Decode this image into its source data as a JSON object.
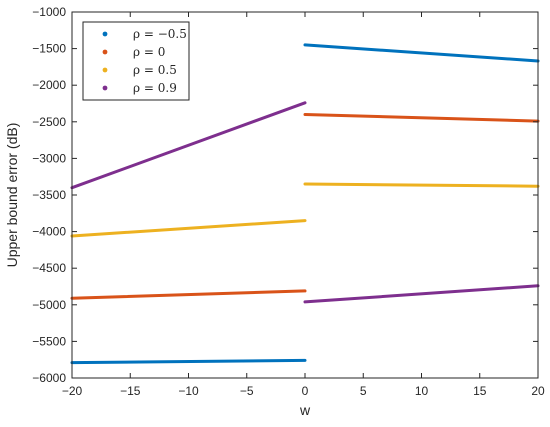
{
  "chart_data": {
    "type": "line",
    "xlabel": "w",
    "ylabel": "Upper bound error (dB)",
    "xlim": [
      -20,
      20
    ],
    "ylim": [
      -6000,
      -1000
    ],
    "xticks": [
      -20,
      -15,
      -10,
      -5,
      0,
      5,
      10,
      15,
      20
    ],
    "yticks": [
      -6000,
      -5500,
      -5000,
      -4500,
      -4000,
      -3500,
      -3000,
      -2500,
      -2000,
      -1500,
      -1000
    ],
    "grid": false,
    "legend_position": "top-left",
    "series": [
      {
        "name": "ρ = −0.5",
        "color": "#0072BD",
        "segments": [
          {
            "x": [
              -20,
              0
            ],
            "y": [
              -5790,
              -5760
            ]
          },
          {
            "x": [
              0,
              20
            ],
            "y": [
              -1450,
              -1670
            ]
          }
        ]
      },
      {
        "name": "ρ = 0",
        "color": "#D95319",
        "segments": [
          {
            "x": [
              -20,
              0
            ],
            "y": [
              -4910,
              -4810
            ]
          },
          {
            "x": [
              0,
              20
            ],
            "y": [
              -2400,
              -2490
            ]
          }
        ]
      },
      {
        "name": "ρ = 0.5",
        "color": "#EDB120",
        "segments": [
          {
            "x": [
              -20,
              0
            ],
            "y": [
              -4060,
              -3850
            ]
          },
          {
            "x": [
              0,
              20
            ],
            "y": [
              -3350,
              -3380
            ]
          }
        ]
      },
      {
        "name": "ρ = 0.9",
        "color": "#7E2F8E",
        "segments": [
          {
            "x": [
              -20,
              0
            ],
            "y": [
              -3400,
              -2240
            ]
          },
          {
            "x": [
              0,
              20
            ],
            "y": [
              -4960,
              -4740
            ]
          }
        ]
      }
    ]
  }
}
